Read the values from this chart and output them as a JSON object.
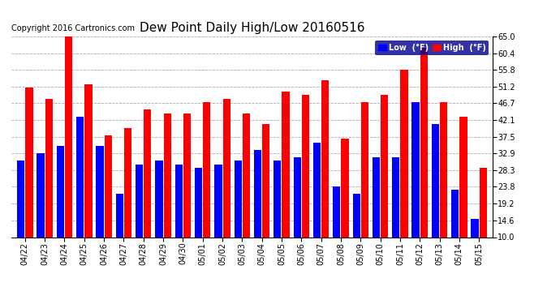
{
  "title": "Dew Point Daily High/Low 20160516",
  "copyright": "Copyright 2016 Cartronics.com",
  "dates": [
    "04/22",
    "04/23",
    "04/24",
    "04/25",
    "04/26",
    "04/27",
    "04/28",
    "04/29",
    "04/30",
    "05/01",
    "05/02",
    "05/03",
    "05/04",
    "05/05",
    "05/06",
    "05/07",
    "05/08",
    "05/09",
    "05/10",
    "05/11",
    "05/12",
    "05/13",
    "05/14",
    "05/15"
  ],
  "low_values": [
    31,
    33,
    35,
    43,
    35,
    22,
    30,
    31,
    30,
    29,
    30,
    31,
    34,
    31,
    32,
    36,
    24,
    22,
    32,
    32,
    47,
    41,
    23,
    15
  ],
  "high_values": [
    51,
    48,
    65,
    52,
    38,
    40,
    45,
    44,
    44,
    47,
    48,
    44,
    41,
    50,
    49,
    53,
    37,
    47,
    49,
    56,
    62,
    47,
    43,
    29
  ],
  "low_color": "#0000ff",
  "high_color": "#ff0000",
  "bg_color": "#ffffff",
  "plot_bg_color": "#ffffff",
  "grid_color": "#aaaaaa",
  "ylim_min": 10.0,
  "ylim_max": 65.0,
  "yticks": [
    10.0,
    14.6,
    19.2,
    23.8,
    28.3,
    32.9,
    37.5,
    42.1,
    46.7,
    51.2,
    55.8,
    60.4,
    65.0
  ],
  "title_fontsize": 11,
  "copyright_fontsize": 7,
  "tick_fontsize": 7,
  "legend_low_label": "Low  (°F)",
  "legend_high_label": "High  (°F)",
  "bar_width": 0.38,
  "bar_gap": 0.04
}
